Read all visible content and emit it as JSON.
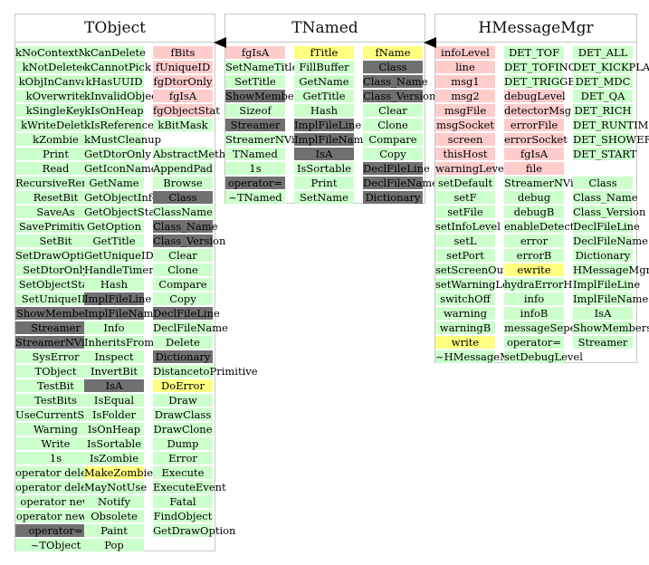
{
  "diagram": {
    "classes": [
      {
        "id": "tobject",
        "name": "TObject",
        "columns": [
          [
            {
              "t": "kNoContextMenu",
              "c": "green"
            },
            {
              "t": "kNotDeleted",
              "c": "green"
            },
            {
              "t": "kObjInCanvas",
              "c": "green"
            },
            {
              "t": "kOverwrite",
              "c": "green"
            },
            {
              "t": "kSingleKey",
              "c": "green"
            },
            {
              "t": "kWriteDelete",
              "c": "green"
            },
            {
              "t": "kZombie",
              "c": "green"
            },
            {
              "t": "Print",
              "c": "green"
            },
            {
              "t": "Read",
              "c": "green"
            },
            {
              "t": "RecursiveRemove",
              "c": "green"
            },
            {
              "t": "ResetBit",
              "c": "green"
            },
            {
              "t": "SaveAs",
              "c": "green"
            },
            {
              "t": "SavePrimitive",
              "c": "green"
            },
            {
              "t": "SetBit",
              "c": "green"
            },
            {
              "t": "SetDrawOption",
              "c": "green"
            },
            {
              "t": "SetDtorOnly",
              "c": "green"
            },
            {
              "t": "SetObjectStat",
              "c": "green"
            },
            {
              "t": "SetUniqueID",
              "c": "green"
            },
            {
              "t": "ShowMembers",
              "c": "gray"
            },
            {
              "t": "Streamer",
              "c": "gray"
            },
            {
              "t": "StreamerNVirtual",
              "c": "gray"
            },
            {
              "t": "SysError",
              "c": "green"
            },
            {
              "t": "TObject",
              "c": "green"
            },
            {
              "t": "TestBit",
              "c": "green"
            },
            {
              "t": "TestBits",
              "c": "green"
            },
            {
              "t": "UseCurrentStyle",
              "c": "green"
            },
            {
              "t": "Warning",
              "c": "green"
            },
            {
              "t": "Write",
              "c": "green"
            },
            {
              "t": "1s",
              "c": "green"
            },
            {
              "t": "operator delete",
              "c": "green"
            },
            {
              "t": "operator delete[]",
              "c": "green"
            },
            {
              "t": "operator new",
              "c": "green"
            },
            {
              "t": "operator new[]",
              "c": "green"
            },
            {
              "t": "operator=",
              "c": "gray"
            },
            {
              "t": "~TObject",
              "c": "green"
            }
          ],
          [
            {
              "t": "kCanDelete",
              "c": "green"
            },
            {
              "t": "kCannotPick",
              "c": "green"
            },
            {
              "t": "kHasUUID",
              "c": "green"
            },
            {
              "t": "kInvalidObject",
              "c": "green"
            },
            {
              "t": "kIsOnHeap",
              "c": "green"
            },
            {
              "t": "kIsReferenced",
              "c": "green"
            },
            {
              "t": "kMustCleanup",
              "c": "green"
            },
            {
              "t": "GetDtorOnly",
              "c": "green"
            },
            {
              "t": "GetIconName",
              "c": "green"
            },
            {
              "t": "GetName",
              "c": "green"
            },
            {
              "t": "GetObjectInfo",
              "c": "green"
            },
            {
              "t": "GetObjectStat",
              "c": "green"
            },
            {
              "t": "GetOption",
              "c": "green"
            },
            {
              "t": "GetTitle",
              "c": "green"
            },
            {
              "t": "GetUniqueID",
              "c": "green"
            },
            {
              "t": "HandleTimer",
              "c": "green"
            },
            {
              "t": "Hash",
              "c": "green"
            },
            {
              "t": "ImplFileLine",
              "c": "gray"
            },
            {
              "t": "ImplFileName",
              "c": "gray"
            },
            {
              "t": "Info",
              "c": "green"
            },
            {
              "t": "InheritsFrom",
              "c": "green"
            },
            {
              "t": "Inspect",
              "c": "green"
            },
            {
              "t": "InvertBit",
              "c": "green"
            },
            {
              "t": "IsA",
              "c": "gray"
            },
            {
              "t": "IsEqual",
              "c": "green"
            },
            {
              "t": "IsFolder",
              "c": "green"
            },
            {
              "t": "IsOnHeap",
              "c": "green"
            },
            {
              "t": "IsSortable",
              "c": "green"
            },
            {
              "t": "IsZombie",
              "c": "green"
            },
            {
              "t": "MakeZombie",
              "c": "yellow"
            },
            {
              "t": "MayNotUse",
              "c": "green"
            },
            {
              "t": "Notify",
              "c": "green"
            },
            {
              "t": "Obsolete",
              "c": "green"
            },
            {
              "t": "Paint",
              "c": "green"
            },
            {
              "t": "Pop",
              "c": "green"
            }
          ],
          [
            {
              "t": "fBits",
              "c": "pink"
            },
            {
              "t": "fUniqueID",
              "c": "pink"
            },
            {
              "t": "fgDtorOnly",
              "c": "pink"
            },
            {
              "t": "fgIsA",
              "c": "pink"
            },
            {
              "t": "fgObjectStat",
              "c": "pink"
            },
            {
              "t": "kBitMask",
              "c": "green"
            },
            {
              "t": "",
              "c": "blank"
            },
            {
              "t": "AbstractMethod",
              "c": "green"
            },
            {
              "t": "AppendPad",
              "c": "green"
            },
            {
              "t": "Browse",
              "c": "green"
            },
            {
              "t": "Class",
              "c": "gray"
            },
            {
              "t": "ClassName",
              "c": "green"
            },
            {
              "t": "Class_Name",
              "c": "gray"
            },
            {
              "t": "Class_Version",
              "c": "gray"
            },
            {
              "t": "Clear",
              "c": "green"
            },
            {
              "t": "Clone",
              "c": "green"
            },
            {
              "t": "Compare",
              "c": "green"
            },
            {
              "t": "Copy",
              "c": "green"
            },
            {
              "t": "DeclFileLine",
              "c": "gray"
            },
            {
              "t": "DeclFileName",
              "c": "green"
            },
            {
              "t": "Delete",
              "c": "green"
            },
            {
              "t": "Dictionary",
              "c": "gray"
            },
            {
              "t": "DistancetoPrimitive",
              "c": "green"
            },
            {
              "t": "DoError",
              "c": "yellow"
            },
            {
              "t": "Draw",
              "c": "green"
            },
            {
              "t": "DrawClass",
              "c": "green"
            },
            {
              "t": "DrawClone",
              "c": "green"
            },
            {
              "t": "Dump",
              "c": "green"
            },
            {
              "t": "Error",
              "c": "green"
            },
            {
              "t": "Execute",
              "c": "green"
            },
            {
              "t": "ExecuteEvent",
              "c": "green"
            },
            {
              "t": "Fatal",
              "c": "green"
            },
            {
              "t": "FindObject",
              "c": "green"
            },
            {
              "t": "GetDrawOption",
              "c": "green"
            }
          ]
        ]
      },
      {
        "id": "tnamed",
        "name": "TNamed",
        "columns": [
          [
            {
              "t": "fgIsA",
              "c": "pink"
            },
            {
              "t": "SetNameTitle",
              "c": "green"
            },
            {
              "t": "SetTitle",
              "c": "green"
            },
            {
              "t": "ShowMembers",
              "c": "gray"
            },
            {
              "t": "Sizeof",
              "c": "green"
            },
            {
              "t": "Streamer",
              "c": "gray"
            },
            {
              "t": "StreamerNVirtual",
              "c": "green"
            },
            {
              "t": "TNamed",
              "c": "green"
            },
            {
              "t": "1s",
              "c": "green"
            },
            {
              "t": "operator=",
              "c": "gray"
            },
            {
              "t": "~TNamed",
              "c": "green"
            }
          ],
          [
            {
              "t": "fTitle",
              "c": "yellow"
            },
            {
              "t": "FillBuffer",
              "c": "green"
            },
            {
              "t": "GetName",
              "c": "green"
            },
            {
              "t": "GetTitle",
              "c": "green"
            },
            {
              "t": "Hash",
              "c": "green"
            },
            {
              "t": "ImplFileLine",
              "c": "gray"
            },
            {
              "t": "ImplFileName",
              "c": "gray"
            },
            {
              "t": "IsA",
              "c": "gray"
            },
            {
              "t": "IsSortable",
              "c": "green"
            },
            {
              "t": "Print",
              "c": "green"
            },
            {
              "t": "SetName",
              "c": "green"
            }
          ],
          [
            {
              "t": "fName",
              "c": "yellow"
            },
            {
              "t": "Class",
              "c": "gray"
            },
            {
              "t": "Class_Name",
              "c": "gray"
            },
            {
              "t": "Class_Version",
              "c": "gray"
            },
            {
              "t": "Clear",
              "c": "green"
            },
            {
              "t": "Clone",
              "c": "green"
            },
            {
              "t": "Compare",
              "c": "green"
            },
            {
              "t": "Copy",
              "c": "green"
            },
            {
              "t": "DeclFileLine",
              "c": "gray"
            },
            {
              "t": "DeclFileName",
              "c": "gray"
            },
            {
              "t": "Dictionary",
              "c": "gray"
            }
          ]
        ]
      },
      {
        "id": "hmessagemgr",
        "name": "HMessageMgr",
        "columns": [
          [
            {
              "t": "infoLevel",
              "c": "pink"
            },
            {
              "t": "line",
              "c": "pink"
            },
            {
              "t": "msg1",
              "c": "pink"
            },
            {
              "t": "msg2",
              "c": "pink"
            },
            {
              "t": "msgFile",
              "c": "pink"
            },
            {
              "t": "msgSocket",
              "c": "pink"
            },
            {
              "t": "screen",
              "c": "pink"
            },
            {
              "t": "thisHost",
              "c": "pink"
            },
            {
              "t": "warningLevel",
              "c": "pink"
            },
            {
              "t": "setDefault",
              "c": "green"
            },
            {
              "t": "setF",
              "c": "green"
            },
            {
              "t": "setFile",
              "c": "green"
            },
            {
              "t": "setInfoLevel",
              "c": "green"
            },
            {
              "t": "setL",
              "c": "green"
            },
            {
              "t": "setPort",
              "c": "green"
            },
            {
              "t": "setScreenOutput",
              "c": "green"
            },
            {
              "t": "setWarningLevel",
              "c": "green"
            },
            {
              "t": "switchOff",
              "c": "green"
            },
            {
              "t": "warning",
              "c": "green"
            },
            {
              "t": "warningB",
              "c": "green"
            },
            {
              "t": "write",
              "c": "yellow"
            },
            {
              "t": "~HMessageMgr",
              "c": "green"
            }
          ],
          [
            {
              "t": "DET_TOF",
              "c": "green"
            },
            {
              "t": "DET_TOFINO",
              "c": "green"
            },
            {
              "t": "DET_TRIGGER",
              "c": "green"
            },
            {
              "t": "debugLevel",
              "c": "pink"
            },
            {
              "t": "detectorMsg",
              "c": "pink"
            },
            {
              "t": "errorFile",
              "c": "pink"
            },
            {
              "t": "errorSocket",
              "c": "pink"
            },
            {
              "t": "fgIsA",
              "c": "pink"
            },
            {
              "t": "file",
              "c": "pink"
            },
            {
              "t": "StreamerNVirtual",
              "c": "green"
            },
            {
              "t": "debug",
              "c": "green"
            },
            {
              "t": "debugB",
              "c": "green"
            },
            {
              "t": "enableDetectorMsg",
              "c": "green"
            },
            {
              "t": "error",
              "c": "green"
            },
            {
              "t": "errorB",
              "c": "green"
            },
            {
              "t": "ewrite",
              "c": "yellow"
            },
            {
              "t": "hydraErrorHandler",
              "c": "green"
            },
            {
              "t": "info",
              "c": "green"
            },
            {
              "t": "infoB",
              "c": "green"
            },
            {
              "t": "messageSeperator",
              "c": "green"
            },
            {
              "t": "operator=",
              "c": "green"
            },
            {
              "t": "setDebugLevel",
              "c": "green"
            }
          ],
          [
            {
              "t": "DET_ALL",
              "c": "green"
            },
            {
              "t": "DET_KICKPLANE",
              "c": "green"
            },
            {
              "t": "DET_MDC",
              "c": "green"
            },
            {
              "t": "DET_QA",
              "c": "green"
            },
            {
              "t": "DET_RICH",
              "c": "green"
            },
            {
              "t": "DET_RUNTIMEDB",
              "c": "green"
            },
            {
              "t": "DET_SHOWER",
              "c": "green"
            },
            {
              "t": "DET_START",
              "c": "green"
            },
            {
              "t": "",
              "c": "blank"
            },
            {
              "t": "Class",
              "c": "green"
            },
            {
              "t": "Class_Name",
              "c": "green"
            },
            {
              "t": "Class_Version",
              "c": "green"
            },
            {
              "t": "DeclFileLine",
              "c": "green"
            },
            {
              "t": "DeclFileName",
              "c": "green"
            },
            {
              "t": "Dictionary",
              "c": "green"
            },
            {
              "t": "HMessageMgr",
              "c": "green"
            },
            {
              "t": "ImplFileLine",
              "c": "green"
            },
            {
              "t": "ImplFileName",
              "c": "green"
            },
            {
              "t": "IsA",
              "c": "green"
            },
            {
              "t": "ShowMembers",
              "c": "green"
            },
            {
              "t": "Streamer",
              "c": "green"
            }
          ]
        ]
      }
    ]
  }
}
